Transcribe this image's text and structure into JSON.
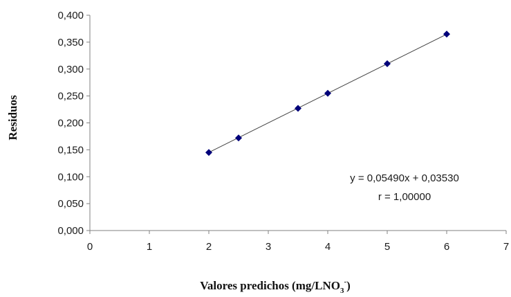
{
  "chart_data": {
    "type": "scatter",
    "x": [
      2,
      2.5,
      3.5,
      4,
      5,
      6
    ],
    "y": [
      0.145,
      0.172,
      0.227,
      0.255,
      0.31,
      0.365
    ],
    "xlabel_main": "Valores predichos (mg/LNO",
    "xlabel_sub": "3",
    "xlabel_sup": "-",
    "xlabel_end": ")",
    "ylabel": "Residuos",
    "xlim": [
      0,
      7
    ],
    "ylim": [
      0,
      0.4
    ],
    "x_ticks": [
      "0",
      "1",
      "2",
      "3",
      "4",
      "5",
      "6",
      "7"
    ],
    "y_ticks": [
      "0,000",
      "0,050",
      "0,100",
      "0,150",
      "0,200",
      "0,250",
      "0,300",
      "0,350",
      "0,400"
    ],
    "trendline": {
      "slope": 0.0549,
      "intercept": 0.0353,
      "x_range": [
        2,
        6
      ]
    },
    "equation": "y = 0,05490x + 0,03530",
    "r_text": "r = 1,00000",
    "grid": false,
    "colors": {
      "marker": "#00007a",
      "line": "#444444",
      "axis": "#808080"
    }
  }
}
